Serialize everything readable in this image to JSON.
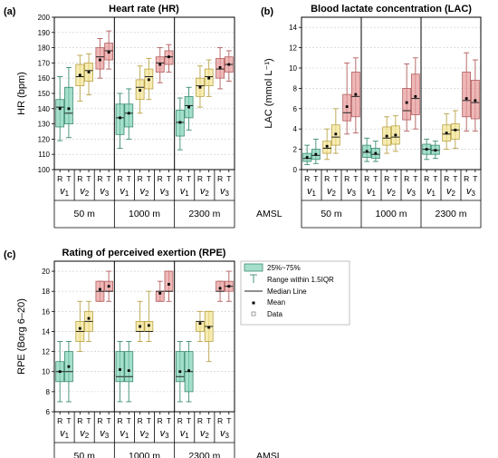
{
  "figure": {
    "amsl_label": "AMSL"
  },
  "legend": {
    "entries": [
      "25%~75%",
      "Range within 1.5IQR",
      "Median Line",
      "Mean",
      "Data"
    ]
  },
  "colors": {
    "v1": "#7fd1b6",
    "v1_edge": "#3c8c74",
    "v2": "#f3e491",
    "v2_edge": "#b9a347",
    "v3": "#e79a9a",
    "v3_edge": "#b35e5e",
    "grid": "#c8c8c8"
  },
  "chart_data": [
    {
      "id": "hr",
      "type": "box",
      "panel_label": "(a)",
      "title": "Heart rate (HR)",
      "ylabel": "HR (bpm)",
      "ylim": [
        100,
        200
      ],
      "yticks": [
        100,
        110,
        120,
        130,
        140,
        150,
        160,
        170,
        180,
        190,
        200
      ],
      "altitudes": [
        "50 m",
        "1000 m",
        "2300 m"
      ],
      "velocities": [
        "v1",
        "v2",
        "v3"
      ],
      "conditions": [
        "R",
        "T"
      ],
      "boxes": [
        {
          "alt": "50 m",
          "vel": "v1",
          "cond": "R",
          "q1": 128,
          "median": 141,
          "q3": 146,
          "wmin": 119,
          "wmax": 161,
          "mean": 140
        },
        {
          "alt": "50 m",
          "vel": "v1",
          "cond": "T",
          "q1": 130,
          "median": 137,
          "q3": 154,
          "wmin": 121,
          "wmax": 167,
          "mean": 140
        },
        {
          "alt": "50 m",
          "vel": "v2",
          "cond": "R",
          "q1": 155,
          "median": 161,
          "q3": 169,
          "wmin": 145,
          "wmax": 175,
          "mean": 162
        },
        {
          "alt": "50 m",
          "vel": "v2",
          "cond": "T",
          "q1": 158,
          "median": 165,
          "q3": 170,
          "wmin": 149,
          "wmax": 176,
          "mean": 164
        },
        {
          "alt": "50 m",
          "vel": "v3",
          "cond": "R",
          "q1": 166,
          "median": 174,
          "q3": 180,
          "wmin": 160,
          "wmax": 186,
          "mean": 172
        },
        {
          "alt": "50 m",
          "vel": "v3",
          "cond": "T",
          "q1": 172,
          "median": 178,
          "q3": 183,
          "wmin": 166,
          "wmax": 191,
          "mean": 177
        },
        {
          "alt": "1000 m",
          "vel": "v1",
          "cond": "R",
          "q1": 123,
          "median": 134,
          "q3": 143,
          "wmin": 114,
          "wmax": 150,
          "mean": 134
        },
        {
          "alt": "1000 m",
          "vel": "v1",
          "cond": "T",
          "q1": 128,
          "median": 137,
          "q3": 143,
          "wmin": 120,
          "wmax": 153,
          "mean": 137
        },
        {
          "alt": "1000 m",
          "vel": "v2",
          "cond": "R",
          "q1": 146,
          "median": 154,
          "q3": 159,
          "wmin": 137,
          "wmax": 168,
          "mean": 152
        },
        {
          "alt": "1000 m",
          "vel": "v2",
          "cond": "T",
          "q1": 153,
          "median": 161,
          "q3": 166,
          "wmin": 146,
          "wmax": 173,
          "mean": 159
        },
        {
          "alt": "1000 m",
          "vel": "v3",
          "cond": "R",
          "q1": 164,
          "median": 170,
          "q3": 174,
          "wmin": 157,
          "wmax": 180,
          "mean": 169
        },
        {
          "alt": "1000 m",
          "vel": "v3",
          "cond": "T",
          "q1": 169,
          "median": 174,
          "q3": 178,
          "wmin": 164,
          "wmax": 182,
          "mean": 174
        },
        {
          "alt": "2300 m",
          "vel": "v1",
          "cond": "R",
          "q1": 122,
          "median": 131,
          "q3": 139,
          "wmin": 113,
          "wmax": 147,
          "mean": 131
        },
        {
          "alt": "2300 m",
          "vel": "v1",
          "cond": "T",
          "q1": 134,
          "median": 142,
          "q3": 148,
          "wmin": 126,
          "wmax": 154,
          "mean": 141
        },
        {
          "alt": "2300 m",
          "vel": "v2",
          "cond": "R",
          "q1": 148,
          "median": 155,
          "q3": 160,
          "wmin": 141,
          "wmax": 168,
          "mean": 154
        },
        {
          "alt": "2300 m",
          "vel": "v2",
          "cond": "T",
          "q1": 155,
          "median": 161,
          "q3": 166,
          "wmin": 148,
          "wmax": 172,
          "mean": 160
        },
        {
          "alt": "2300 m",
          "vel": "v3",
          "cond": "R",
          "q1": 160,
          "median": 166,
          "q3": 173,
          "wmin": 153,
          "wmax": 180,
          "mean": 167
        },
        {
          "alt": "2300 m",
          "vel": "v3",
          "cond": "T",
          "q1": 164,
          "median": 169,
          "q3": 174,
          "wmin": 158,
          "wmax": 178,
          "mean": 169
        }
      ]
    },
    {
      "id": "lac",
      "type": "box",
      "panel_label": "(b)",
      "title": "Blood lactate concentration (LAC)",
      "ylabel": "LAC (mmol L⁻¹)",
      "ylim": [
        0,
        15
      ],
      "yticks": [
        0,
        2,
        4,
        6,
        8,
        10,
        12,
        14
      ],
      "altitudes": [
        "50 m",
        "1000 m",
        "2300 m"
      ],
      "velocities": [
        "v1",
        "v2",
        "v3"
      ],
      "conditions": [
        "R",
        "T"
      ],
      "boxes": [
        {
          "alt": "50 m",
          "vel": "v1",
          "cond": "R",
          "q1": 0.8,
          "median": 1.1,
          "q3": 1.6,
          "wmin": 0.5,
          "wmax": 2.4,
          "mean": 1.2
        },
        {
          "alt": "50 m",
          "vel": "v1",
          "cond": "T",
          "q1": 1.0,
          "median": 1.4,
          "q3": 2.0,
          "wmin": 0.6,
          "wmax": 3.0,
          "mean": 1.5
        },
        {
          "alt": "50 m",
          "vel": "v2",
          "cond": "R",
          "q1": 1.6,
          "median": 2.1,
          "q3": 2.8,
          "wmin": 1.0,
          "wmax": 4.0,
          "mean": 2.3
        },
        {
          "alt": "50 m",
          "vel": "v2",
          "cond": "T",
          "q1": 2.4,
          "median": 3.2,
          "q3": 4.4,
          "wmin": 1.6,
          "wmax": 6.0,
          "mean": 3.5
        },
        {
          "alt": "50 m",
          "vel": "v3",
          "cond": "R",
          "q1": 4.8,
          "median": 5.6,
          "q3": 7.4,
          "wmin": 3.5,
          "wmax": 10.5,
          "mean": 6.2
        },
        {
          "alt": "50 m",
          "vel": "v3",
          "cond": "T",
          "q1": 5.2,
          "median": 7.2,
          "q3": 9.6,
          "wmin": 3.6,
          "wmax": 11.0,
          "mean": 7.4
        },
        {
          "alt": "1000 m",
          "vel": "v1",
          "cond": "R",
          "q1": 1.2,
          "median": 1.7,
          "q3": 2.4,
          "wmin": 0.8,
          "wmax": 3.1,
          "mean": 1.8
        },
        {
          "alt": "1000 m",
          "vel": "v1",
          "cond": "T",
          "q1": 1.1,
          "median": 1.5,
          "q3": 2.1,
          "wmin": 0.8,
          "wmax": 2.8,
          "mean": 1.6
        },
        {
          "alt": "1000 m",
          "vel": "v2",
          "cond": "R",
          "q1": 2.4,
          "median": 3.1,
          "q3": 4.2,
          "wmin": 1.6,
          "wmax": 5.2,
          "mean": 3.3
        },
        {
          "alt": "1000 m",
          "vel": "v2",
          "cond": "T",
          "q1": 2.5,
          "median": 3.2,
          "q3": 4.3,
          "wmin": 1.8,
          "wmax": 5.3,
          "mean": 3.4
        },
        {
          "alt": "1000 m",
          "vel": "v3",
          "cond": "R",
          "q1": 4.9,
          "median": 5.8,
          "q3": 8.0,
          "wmin": 3.8,
          "wmax": 10.4,
          "mean": 6.6
        },
        {
          "alt": "1000 m",
          "vel": "v3",
          "cond": "T",
          "q1": 5.4,
          "median": 7.0,
          "q3": 9.4,
          "wmin": 4.0,
          "wmax": 11.0,
          "mean": 7.2
        },
        {
          "alt": "2300 m",
          "vel": "v1",
          "cond": "R",
          "q1": 1.5,
          "median": 2.0,
          "q3": 2.5,
          "wmin": 1.0,
          "wmax": 3.0,
          "mean": 2.0
        },
        {
          "alt": "2300 m",
          "vel": "v1",
          "cond": "T",
          "q1": 1.5,
          "median": 1.9,
          "q3": 2.4,
          "wmin": 1.1,
          "wmax": 2.8,
          "mean": 1.9
        },
        {
          "alt": "2300 m",
          "vel": "v2",
          "cond": "R",
          "q1": 2.8,
          "median": 3.5,
          "q3": 4.4,
          "wmin": 2.0,
          "wmax": 5.5,
          "mean": 3.6
        },
        {
          "alt": "2300 m",
          "vel": "v2",
          "cond": "T",
          "q1": 3.0,
          "median": 3.9,
          "q3": 4.5,
          "wmin": 2.1,
          "wmax": 5.8,
          "mean": 3.9
        },
        {
          "alt": "2300 m",
          "vel": "v3",
          "cond": "R",
          "q1": 5.2,
          "median": 6.8,
          "q3": 9.6,
          "wmin": 3.8,
          "wmax": 11.5,
          "mean": 7.0
        },
        {
          "alt": "2300 m",
          "vel": "v3",
          "cond": "T",
          "q1": 5.0,
          "median": 6.6,
          "q3": 8.8,
          "wmin": 3.8,
          "wmax": 10.8,
          "mean": 6.8
        }
      ]
    },
    {
      "id": "rpe",
      "type": "box",
      "panel_label": "(c)",
      "title": "Rating of perceived exertion (RPE)",
      "ylabel": "RPE (Borg 6–20)",
      "ylim": [
        6,
        21
      ],
      "yticks": [
        6,
        8,
        10,
        12,
        14,
        16,
        18,
        20
      ],
      "altitudes": [
        "50 m",
        "1000 m",
        "2300 m"
      ],
      "velocities": [
        "v1",
        "v2",
        "v3"
      ],
      "conditions": [
        "R",
        "T"
      ],
      "boxes": [
        {
          "alt": "50 m",
          "vel": "v1",
          "cond": "R",
          "q1": 9,
          "median": 10,
          "q3": 11,
          "wmin": 7,
          "wmax": 13,
          "mean": 10
        },
        {
          "alt": "50 m",
          "vel": "v1",
          "cond": "T",
          "q1": 9,
          "median": 10,
          "q3": 12,
          "wmin": 7,
          "wmax": 13,
          "mean": 10.5
        },
        {
          "alt": "50 m",
          "vel": "v2",
          "cond": "R",
          "q1": 13,
          "median": 14,
          "q3": 15,
          "wmin": 12,
          "wmax": 17,
          "mean": 14.3
        },
        {
          "alt": "50 m",
          "vel": "v2",
          "cond": "T",
          "q1": 14,
          "median": 15,
          "q3": 16,
          "wmin": 13,
          "wmax": 17,
          "mean": 15.3
        },
        {
          "alt": "50 m",
          "vel": "v3",
          "cond": "R",
          "q1": 17,
          "median": 18,
          "q3": 19,
          "wmin": 17,
          "wmax": 19,
          "mean": 18.2
        },
        {
          "alt": "50 m",
          "vel": "v3",
          "cond": "T",
          "q1": 18,
          "median": 18,
          "q3": 19,
          "wmin": 17,
          "wmax": 20,
          "mean": 18.5
        },
        {
          "alt": "1000 m",
          "vel": "v1",
          "cond": "R",
          "q1": 9,
          "median": 9.5,
          "q3": 12,
          "wmin": 7,
          "wmax": 13,
          "mean": 10.2
        },
        {
          "alt": "1000 m",
          "vel": "v1",
          "cond": "T",
          "q1": 9,
          "median": 9.5,
          "q3": 12,
          "wmin": 7,
          "wmax": 13,
          "mean": 10.1
        },
        {
          "alt": "1000 m",
          "vel": "v2",
          "cond": "R",
          "q1": 14,
          "median": 14,
          "q3": 15,
          "wmin": 13,
          "wmax": 17,
          "mean": 14.5
        },
        {
          "alt": "1000 m",
          "vel": "v2",
          "cond": "T",
          "q1": 14,
          "median": 14,
          "q3": 15,
          "wmin": 13,
          "wmax": 18,
          "mean": 14.6
        },
        {
          "alt": "1000 m",
          "vel": "v3",
          "cond": "R",
          "q1": 17,
          "median": 18,
          "q3": 18,
          "wmin": 17,
          "wmax": 19,
          "mean": 17.8
        },
        {
          "alt": "1000 m",
          "vel": "v3",
          "cond": "T",
          "q1": 18,
          "median": 18,
          "q3": 20,
          "wmin": 17,
          "wmax": 20,
          "mean": 18.7
        },
        {
          "alt": "2300 m",
          "vel": "v1",
          "cond": "R",
          "q1": 9,
          "median": 9.5,
          "q3": 12,
          "wmin": 7,
          "wmax": 13,
          "mean": 10
        },
        {
          "alt": "2300 m",
          "vel": "v1",
          "cond": "T",
          "q1": 8,
          "median": 10,
          "q3": 12,
          "wmin": 7,
          "wmax": 13,
          "mean": 10.1
        },
        {
          "alt": "2300 m",
          "vel": "v2",
          "cond": "R",
          "q1": 14,
          "median": 15,
          "q3": 15,
          "wmin": 13,
          "wmax": 16,
          "mean": 14.8
        },
        {
          "alt": "2300 m",
          "vel": "v2",
          "cond": "T",
          "q1": 13,
          "median": 14.5,
          "q3": 16,
          "wmin": 11,
          "wmax": 16,
          "mean": 14.4
        },
        {
          "alt": "2300 m",
          "vel": "v3",
          "cond": "R",
          "q1": 18,
          "median": 18,
          "q3": 19,
          "wmin": 17,
          "wmax": 19,
          "mean": 18.3
        },
        {
          "alt": "2300 m",
          "vel": "v3",
          "cond": "T",
          "q1": 18,
          "median": 18.5,
          "q3": 19,
          "wmin": 17,
          "wmax": 20,
          "mean": 18.5
        }
      ]
    }
  ]
}
